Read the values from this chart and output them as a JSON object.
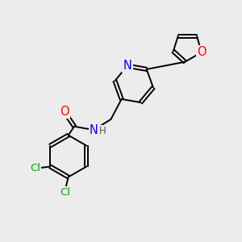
{
  "bg_color": "#ececec",
  "bond_color": "#000000",
  "bond_width": 1.4,
  "atom_colors": {
    "N": "#0000ff",
    "O": "#ff0000",
    "Cl": "#00aa00",
    "C": "#000000",
    "H": "#555555"
  },
  "font_size": 9.5
}
